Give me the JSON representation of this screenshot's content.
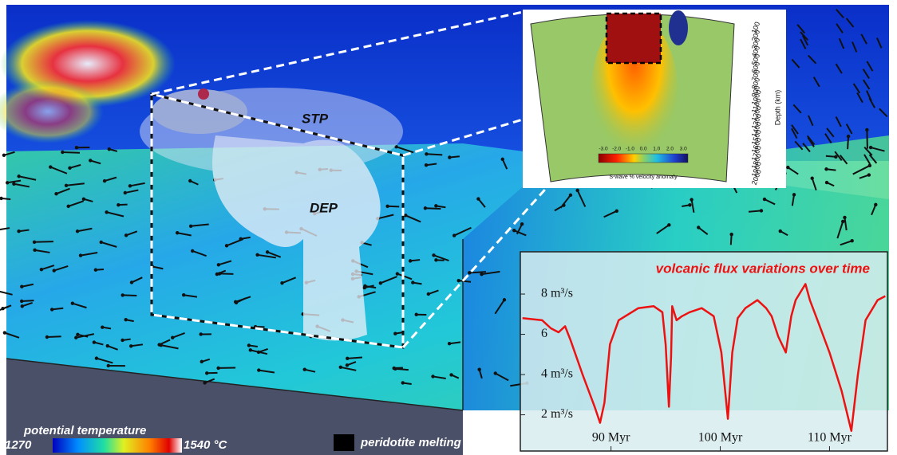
{
  "chart_data": {
    "type": "line",
    "title": "volcanic flux variations over  time",
    "x": [
      81.9,
      83.7,
      84.5,
      85.2,
      85.8,
      86.3,
      87.4,
      88.5,
      89.0,
      89.4,
      89.9,
      90.7,
      92.5,
      93.9,
      94.7,
      95.0,
      95.3,
      95.5,
      95.6,
      96.0,
      96.5,
      97.2,
      98.3,
      99.4,
      100.1,
      100.7,
      101.1,
      101.6,
      102.3,
      103.4,
      104.2,
      104.7,
      105.3,
      106.0,
      106.5,
      106.9,
      107.8,
      108.2,
      108.9,
      110.0,
      111.1,
      112.0,
      112.6,
      113.3,
      114.4,
      115.1
    ],
    "series": [
      {
        "color": "#ee1111",
        "values": [
          6.8,
          6.7,
          6.3,
          6.1,
          6.4,
          5.7,
          4.0,
          2.4,
          1.6,
          2.6,
          5.5,
          6.7,
          7.3,
          7.4,
          7.1,
          5.5,
          2.4,
          4.9,
          7.4,
          6.7,
          6.9,
          7.1,
          7.3,
          6.9,
          5.1,
          1.8,
          5.1,
          6.8,
          7.3,
          7.7,
          7.3,
          6.9,
          5.9,
          5.1,
          6.9,
          7.7,
          8.5,
          7.7,
          6.7,
          5.1,
          3.2,
          1.2,
          4.0,
          6.7,
          7.7,
          7.9
        ]
      }
    ],
    "xlim": [
      81.7,
      115.3
    ],
    "ylim": [
      0.2,
      10.1
    ],
    "xticks": [
      {
        "value": 90,
        "label": "90 Myr"
      },
      {
        "value": 100,
        "label": "100 Myr"
      },
      {
        "value": 110,
        "label": "110 Myr"
      }
    ],
    "yticks": [
      {
        "value": 2,
        "label": "2 m³/s"
      },
      {
        "value": 4,
        "label": "4 m³/s"
      },
      6,
      {
        "value": 8,
        "label": "8 m³/s"
      }
    ]
  },
  "model": {
    "labels": [
      "STP",
      "DEP"
    ],
    "temperature_legend": {
      "title": "potential temperature",
      "min": "1270",
      "max": "1540 °C"
    },
    "melting_legend": "peridotite melting"
  },
  "tomography": {
    "depth_ticks": [
      100,
      200,
      300,
      400,
      500,
      600,
      700,
      800,
      900,
      1000,
      1100,
      1200,
      1300,
      1400,
      1500,
      1600,
      1700,
      1800,
      1900,
      2000
    ],
    "depth_label": "Depth (km)",
    "colorbar_ticks": [
      "-3.0",
      "-2.0",
      "-1.0",
      "0.0",
      "1.0",
      "2.0",
      "3.0"
    ],
    "colorbar_label": "S-wave % velocity anomaly"
  }
}
